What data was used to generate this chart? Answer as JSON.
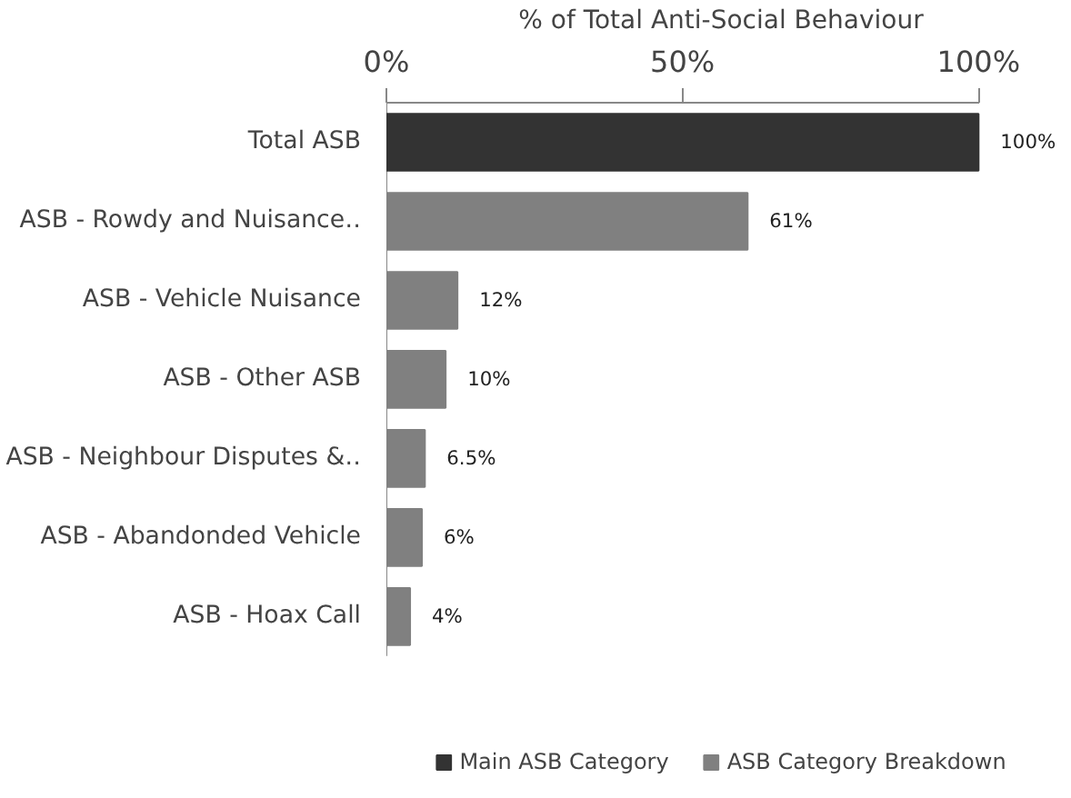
{
  "chart_data": {
    "type": "bar",
    "orientation": "horizontal",
    "xlabel": "% of Total Anti-Social Behaviour",
    "categories": [
      "Total ASB",
      "ASB - Rowdy and Nuisance‥",
      "ASB - Vehicle Nuisance",
      "ASB - Other ASB",
      "ASB - Neighbour Disputes &‥",
      "ASB - Abandonded Vehicle",
      "ASB - Hoax Call"
    ],
    "xlim": [
      0,
      100
    ],
    "xticks": [
      {
        "value": 0,
        "label": "0%"
      },
      {
        "value": 50,
        "label": "50%"
      },
      {
        "value": 100,
        "label": "100%"
      }
    ],
    "series": [
      {
        "name": "Main ASB Category",
        "color": "#333333",
        "values": [
          100,
          null,
          null,
          null,
          null,
          null,
          null
        ],
        "value_labels": [
          "100%",
          null,
          null,
          null,
          null,
          null,
          null
        ]
      },
      {
        "name": "ASB Category Breakdown",
        "color": "#808080",
        "values": [
          null,
          61,
          12,
          10,
          6.5,
          6,
          4
        ],
        "value_labels": [
          null,
          "61%",
          "12%",
          "10%",
          "6.5%",
          "6%",
          "4%"
        ]
      }
    ],
    "grid": false,
    "legend": "bottom"
  }
}
